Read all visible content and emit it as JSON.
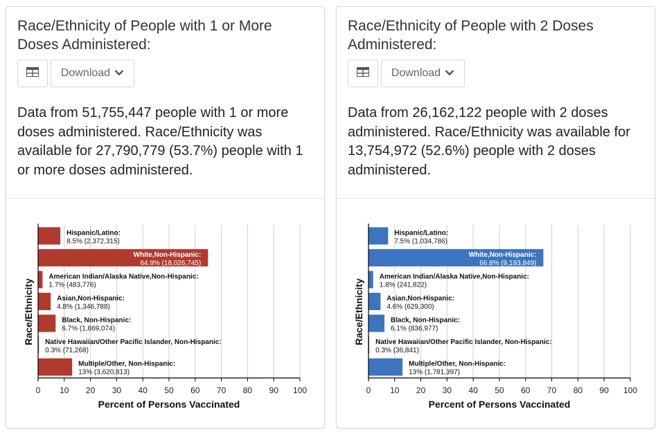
{
  "cards": [
    {
      "title": "Race/Ethnicity of People with 1 or More Doses Administered:",
      "download_label": "Download",
      "description": "Data from 51,755,447 people with 1 or more doses administered. Race/Ethnicity was available for 27,790,779 (53.7%) people with 1 or more doses administered."
    },
    {
      "title": "Race/Ethnicity of People with 2 Doses Administered:",
      "download_label": "Download",
      "description": "Data from 26,162,122 people with 2 doses administered. Race/Ethnicity was available for 13,754,972 (52.6%) people with 2 doses administered."
    }
  ],
  "icons": {
    "table": "table-icon",
    "download_caret": "chevron-down-icon"
  },
  "colors": {
    "series_1plus": "#b03a2e",
    "series_2doses": "#3d74bf"
  },
  "chart_data": [
    {
      "type": "bar",
      "orientation": "horizontal",
      "xlabel": "Percent of Persons Vaccinated",
      "ylabel": "Race/Ethnicity",
      "xlim": [
        0,
        100
      ],
      "xticks": [
        "0",
        "10",
        "20",
        "30",
        "40",
        "50",
        "60",
        "70",
        "80",
        "90",
        "100"
      ],
      "grid": true,
      "categories": [
        "Hispanic/Latino:",
        "White,Non-Hispanic:",
        "American Indian/Alaska Native,Non-Hispanic:",
        "Asian,Non-Hispanic:",
        "Black, Non-Hispanic:",
        "Native Hawaiian/Other Pacific Islander, Non-Hispanic:",
        "Multiple/Other, Non-Hispanic:"
      ],
      "values": [
        8.5,
        64.9,
        1.7,
        4.8,
        6.7,
        0.3,
        13
      ],
      "value_labels": [
        "8.5% (2,372,315)",
        "64.9% (18,026,745)",
        "1.7% (483,776)",
        "4.8% (1,346,788)",
        "6.7% (1,869,074)",
        "0.3% (71,268)",
        "13% (3,620,813)"
      ]
    },
    {
      "type": "bar",
      "orientation": "horizontal",
      "xlabel": "Percent of Persons Vaccinated",
      "ylabel": "Race/Ethnicity",
      "xlim": [
        0,
        100
      ],
      "xticks": [
        "0",
        "10",
        "20",
        "30",
        "40",
        "50",
        "60",
        "70",
        "80",
        "90",
        "100"
      ],
      "grid": true,
      "categories": [
        "Hispanic/Latino:",
        "White,Non-Hispanic:",
        "American Indian/Alaska Native,Non-Hispanic:",
        "Asian,Non-Hispanic:",
        "Black, Non-Hispanic:",
        "Native Hawaiian/Other Pacific Islander, Non-Hispanic:",
        "Multiple/Other, Non-Hispanic:"
      ],
      "values": [
        7.5,
        66.8,
        1.8,
        4.6,
        6.1,
        0.3,
        13
      ],
      "value_labels": [
        "7.5% (1,034,786)",
        "66.8% (9,193,849)",
        "1.8% (241,822)",
        "4.6% (629,300)",
        "6.1% (836,977)",
        "0.3% (36,841)",
        "13% (1,781,397)"
      ]
    }
  ]
}
